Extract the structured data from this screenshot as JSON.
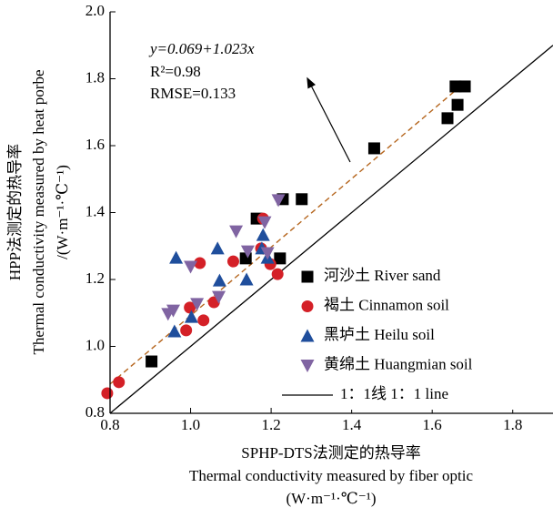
{
  "chart_data": {
    "type": "scatter",
    "x_label": [
      "SPHP-DTS法测定的热导率",
      "Thermal conductivity measured by fiber optic",
      "(W·m⁻¹·℃⁻¹)"
    ],
    "y_label": [
      "HPP法测定的热导率",
      "Thermal conductivity measured by heat porbe",
      "/(W·m⁻¹·℃⁻¹)"
    ],
    "xlim": [
      0.8,
      1.9
    ],
    "ylim": [
      0.8,
      2.0
    ],
    "xticks": [
      0.8,
      {
        "value": 1.0,
        "label": "1.0"
      },
      1.2,
      1.4,
      1.6,
      1.8
    ],
    "yticks": [
      0.8,
      {
        "value": 1.0,
        "label": "1.0"
      },
      1.2,
      1.4,
      1.6,
      1.8,
      {
        "value": 2.0,
        "label": "2.0"
      }
    ],
    "series": [
      {
        "name": "河沙土 River sand",
        "color": "#000000",
        "marker": "square",
        "x": [
          0.903,
          1.137,
          1.222,
          1.164,
          1.229,
          1.276,
          1.456,
          1.638,
          1.663,
          1.658,
          1.681
        ],
        "y": [
          0.955,
          1.263,
          1.263,
          1.382,
          1.44,
          1.44,
          1.592,
          1.682,
          1.722,
          1.777,
          1.777
        ]
      },
      {
        "name": "褐土 Cinnamon soil",
        "color": "#d42027",
        "marker": "circle",
        "x": [
          0.793,
          0.822,
          0.989,
          0.998,
          1.023,
          1.032,
          1.058,
          1.106,
          1.18,
          1.175,
          1.198,
          1.216
        ],
        "y": [
          0.86,
          0.893,
          1.048,
          1.116,
          1.249,
          1.078,
          1.132,
          1.254,
          1.382,
          1.293,
          1.246,
          1.216
        ]
      },
      {
        "name": "黑垆土 Heilu soil",
        "color": "#1f4e9c",
        "marker": "triangle",
        "x": [
          0.964,
          0.96,
          1.002,
          1.067,
          1.072,
          1.139,
          1.177,
          1.18,
          1.191
        ],
        "y": [
          1.265,
          1.045,
          1.088,
          1.293,
          1.197,
          1.2,
          1.293,
          1.333,
          1.265
        ]
      },
      {
        "name": "黄绵土 Huangmian soil",
        "color": "#8064a2",
        "marker": "triangle-down",
        "x": [
          0.944,
          0.957,
          1.0,
          1.016,
          1.07,
          1.113,
          1.142,
          1.184,
          1.191,
          1.218
        ],
        "y": [
          1.097,
          1.107,
          1.238,
          1.127,
          1.148,
          1.344,
          1.284,
          1.371,
          1.279,
          1.437
        ]
      }
    ],
    "reference_line": {
      "name": "1：1线 1：1 line",
      "color": "#000000"
    },
    "fit_line": {
      "intercept": 0.069,
      "slope": 1.023,
      "color": "#b5651d"
    },
    "annotations": [
      "y=0.069+1.023x",
      "R²=0.98",
      "RMSE=0.133"
    ]
  }
}
